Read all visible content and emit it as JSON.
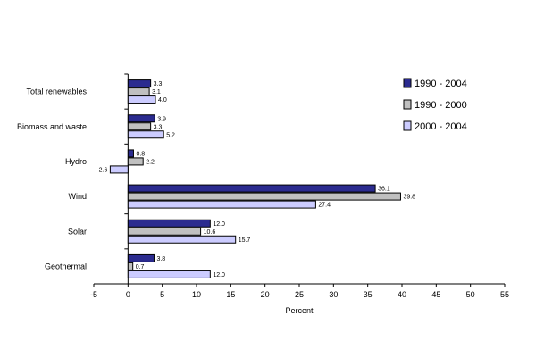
{
  "chart_data": {
    "type": "bar",
    "orientation": "horizontal",
    "categories": [
      "Total renewables",
      "Biomass and waste",
      "Hydro",
      "Wind",
      "Solar",
      "Geothermal"
    ],
    "series": [
      {
        "name": "1990 - 2004",
        "color": "#2b2b8f",
        "values": [
          3.3,
          3.9,
          0.8,
          36.1,
          12.0,
          3.8
        ],
        "labels": [
          "3.3",
          "3.9",
          "0.8",
          "36.1",
          "12.0",
          "3.8"
        ]
      },
      {
        "name": "1990 - 2000",
        "color": "#c0c0c0",
        "values": [
          3.1,
          3.3,
          2.2,
          39.8,
          10.6,
          0.7
        ],
        "labels": [
          "3.1",
          "3.3",
          "2.2",
          "39.8",
          "10.6",
          "0.7"
        ]
      },
      {
        "name": "2000 - 2004",
        "color": "#ccccff",
        "values": [
          4.0,
          5.2,
          -2.6,
          27.4,
          15.7,
          12.0
        ],
        "labels": [
          "4.0",
          "5.2",
          "-2.6",
          "27.4",
          "15.7",
          "12.0"
        ]
      }
    ],
    "xlabel": "Percent",
    "xlim": [
      -5,
      55
    ],
    "xticks": [
      -5,
      0,
      5,
      10,
      15,
      20,
      25,
      30,
      35,
      40,
      45,
      50,
      55
    ],
    "legend_position": "top-right",
    "grid": false
  }
}
